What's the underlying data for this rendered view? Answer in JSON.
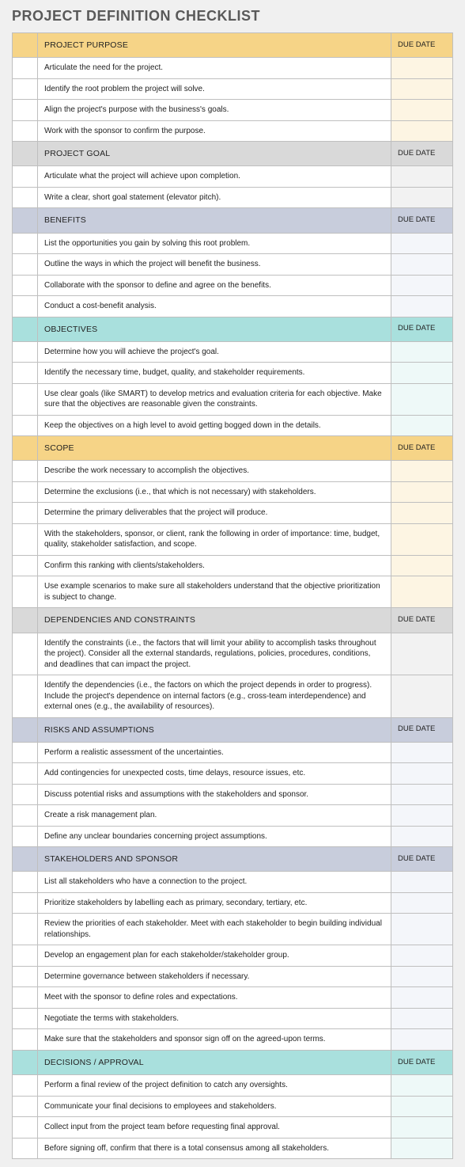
{
  "title": "PROJECT DEFINITION CHECKLIST",
  "dueDateLabel": "DUE DATE",
  "colors": {
    "yellow": {
      "header": "#f6d487",
      "row": "#fdf5e3"
    },
    "gray": {
      "header": "#d9d9d9",
      "row": "#f2f2f2"
    },
    "bluegray": {
      "header": "#c8cddc",
      "row": "#f4f6fa"
    },
    "teal": {
      "header": "#a9e0dd",
      "row": "#eef9f8"
    }
  },
  "sections": [
    {
      "title": "PROJECT PURPOSE",
      "color": "yellow",
      "items": [
        "Articulate the need for the project.",
        "Identify the root problem the project will solve.",
        "Align the project's purpose with the business's goals.",
        "Work with the sponsor to confirm the purpose."
      ]
    },
    {
      "title": "PROJECT GOAL",
      "color": "gray",
      "items": [
        "Articulate what the project will achieve upon completion.",
        "Write a clear, short goal statement (elevator pitch)."
      ]
    },
    {
      "title": "BENEFITS",
      "color": "bluegray",
      "items": [
        "List the opportunities you gain by solving this root problem.",
        "Outline the ways in which the project will benefit the business.",
        "Collaborate with the sponsor to define and agree on the benefits.",
        "Conduct a cost-benefit analysis."
      ]
    },
    {
      "title": "OBJECTIVES",
      "color": "teal",
      "items": [
        "Determine how you will achieve the project's goal.",
        "Identify the necessary time, budget, quality, and stakeholder requirements.",
        "Use clear goals (like SMART) to develop metrics and evaluation criteria for each objective. Make sure that the objectives are reasonable given the constraints.",
        "Keep the objectives on a high level to avoid getting bogged down in the details."
      ]
    },
    {
      "title": "SCOPE",
      "color": "yellow",
      "items": [
        "Describe the work necessary to accomplish the objectives.",
        "Determine the exclusions (i.e., that which is not necessary) with stakeholders.",
        "Determine the primary deliverables that the project will produce.",
        "With the stakeholders, sponsor, or client, rank the following in order of importance: time, budget, quality, stakeholder satisfaction, and scope.",
        "Confirm this ranking with clients/stakeholders.",
        "Use example scenarios to make sure all stakeholders understand that the objective prioritization is subject to change."
      ]
    },
    {
      "title": "DEPENDENCIES AND CONSTRAINTS",
      "color": "gray",
      "items": [
        "Identify the constraints (i.e., the factors that will limit your ability to accomplish tasks throughout the project). Consider all the external standards, regulations, policies, procedures, conditions, and deadlines that can impact the project.",
        "Identify the dependencies (i.e., the factors on which the project depends in order to progress). Include the project's dependence on internal factors (e.g., cross-team interdependence) and external ones (e.g., the availability of resources)."
      ]
    },
    {
      "title": "RISKS AND ASSUMPTIONS",
      "color": "bluegray",
      "items": [
        "Perform a realistic assessment of the uncertainties.",
        "Add contingencies for unexpected costs, time delays, resource issues, etc.",
        "Discuss potential risks and assumptions with the stakeholders and sponsor.",
        "Create a risk management plan.",
        "Define any unclear boundaries concerning project assumptions."
      ]
    },
    {
      "title": "STAKEHOLDERS AND SPONSOR",
      "color": "bluegray",
      "items": [
        "List all stakeholders who have a connection to the project.",
        "Prioritize stakeholders by labelling each as primary, secondary, tertiary, etc.",
        "Review the priorities of each stakeholder. Meet with each stakeholder to begin building individual relationships.",
        "Develop an engagement plan for each stakeholder/stakeholder group.",
        "Determine governance between stakeholders if necessary.",
        "Meet with the sponsor to define roles and expectations.",
        "Negotiate the terms with stakeholders.",
        "Make sure that the stakeholders and sponsor sign off on the agreed-upon terms."
      ]
    },
    {
      "title": "DECISIONS / APPROVAL",
      "color": "teal",
      "items": [
        "Perform a final review of the project definition to catch any oversights.",
        "Communicate your final decisions to employees and stakeholders.",
        "Collect input from the project team before requesting final approval.",
        "Before signing off, confirm that there is a total consensus among all stakeholders."
      ]
    }
  ]
}
